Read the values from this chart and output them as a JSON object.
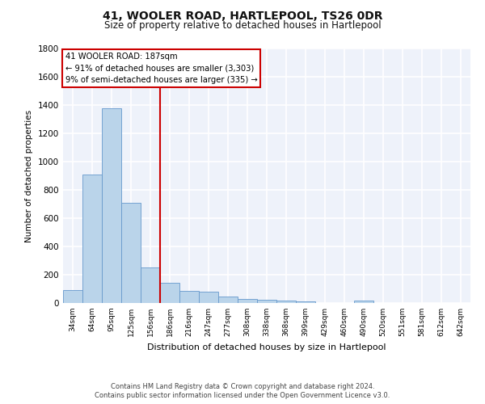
{
  "title": "41, WOOLER ROAD, HARTLEPOOL, TS26 0DR",
  "subtitle": "Size of property relative to detached houses in Hartlepool",
  "xlabel": "Distribution of detached houses by size in Hartlepool",
  "ylabel": "Number of detached properties",
  "categories": [
    "34sqm",
    "64sqm",
    "95sqm",
    "125sqm",
    "156sqm",
    "186sqm",
    "216sqm",
    "247sqm",
    "277sqm",
    "308sqm",
    "338sqm",
    "368sqm",
    "399sqm",
    "429sqm",
    "460sqm",
    "490sqm",
    "520sqm",
    "551sqm",
    "581sqm",
    "612sqm",
    "642sqm"
  ],
  "values": [
    90,
    910,
    1380,
    710,
    250,
    145,
    85,
    80,
    45,
    30,
    25,
    15,
    10,
    0,
    0,
    20,
    0,
    0,
    0,
    0,
    0
  ],
  "bar_color": "#bad4ea",
  "bar_edge_color": "#6699cc",
  "ylim": [
    0,
    1800
  ],
  "yticks": [
    0,
    200,
    400,
    600,
    800,
    1000,
    1200,
    1400,
    1600,
    1800
  ],
  "property_line_color": "#cc0000",
  "annotation_text": "41 WOOLER ROAD: 187sqm\n← 91% of detached houses are smaller (3,303)\n9% of semi-detached houses are larger (335) →",
  "annotation_box_color": "#cc0000",
  "footer_line1": "Contains HM Land Registry data © Crown copyright and database right 2024.",
  "footer_line2": "Contains public sector information licensed under the Open Government Licence v3.0.",
  "bg_color": "#eef2fa",
  "grid_color": "#ffffff"
}
